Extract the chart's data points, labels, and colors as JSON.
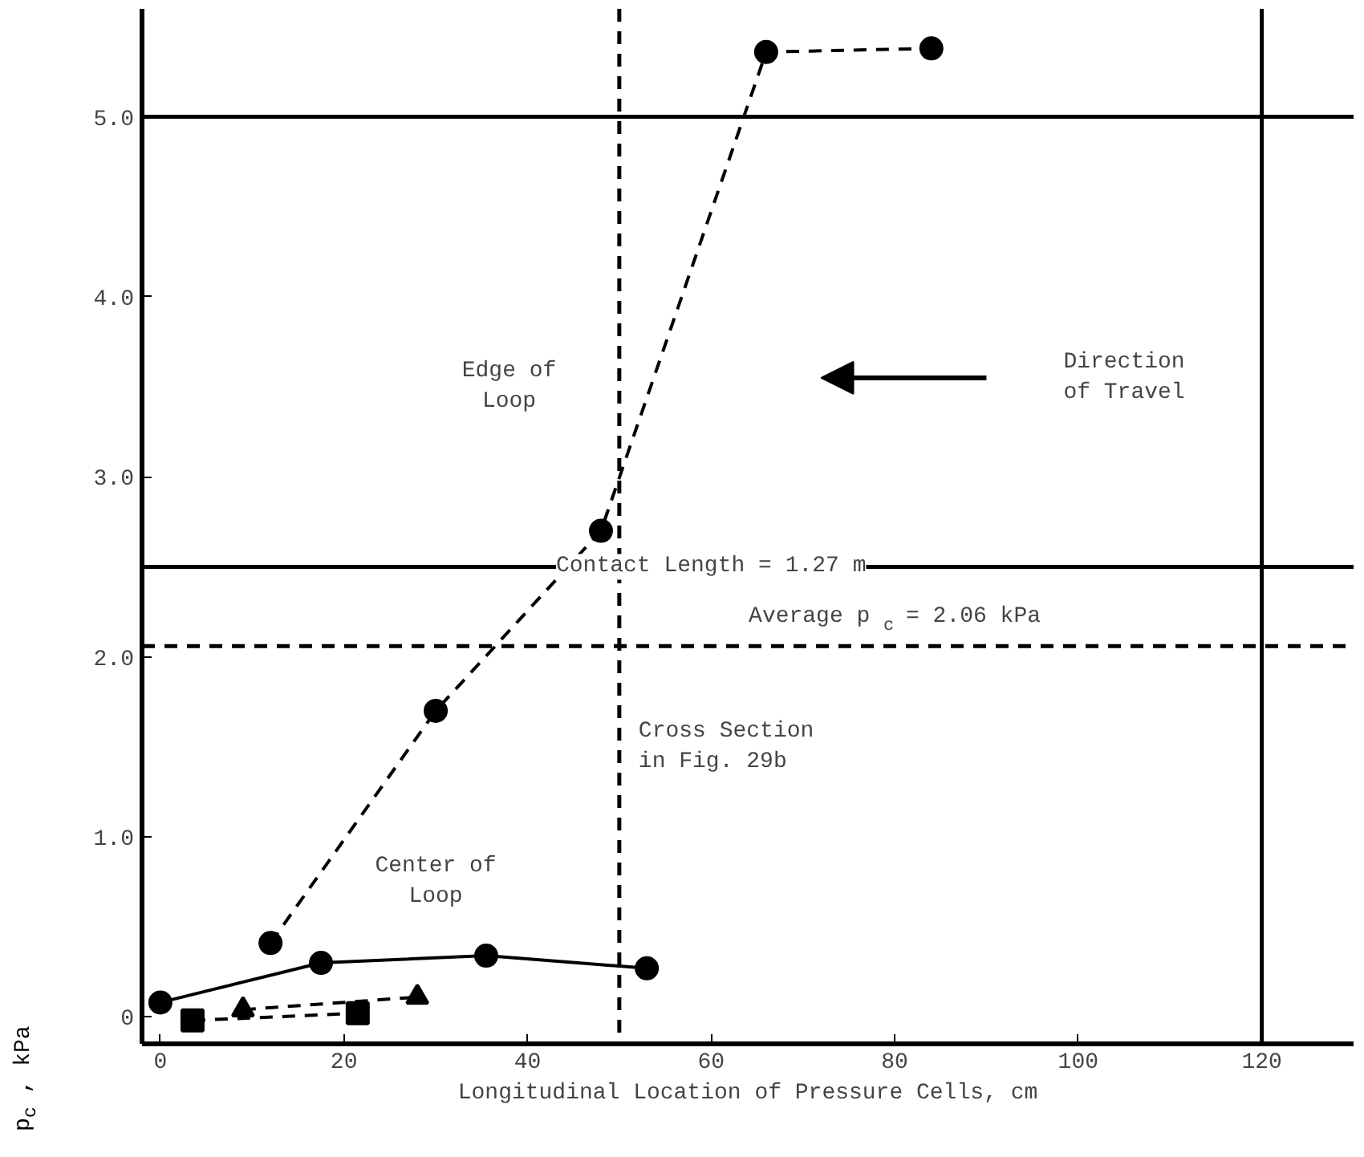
{
  "chart_data": {
    "type": "line",
    "xlabel": "Longitudinal Location of Pressure Cells, cm",
    "ylabel": "p$_{c}$ , kPa",
    "xlim": [
      -2,
      130
    ],
    "ylim": [
      -0.15,
      5.6
    ],
    "xticks": [
      0,
      20,
      40,
      60,
      80,
      100,
      120
    ],
    "yticks": [
      {
        "value": 0,
        "label": "0"
      },
      {
        "value": 1,
        "label": "1.0"
      },
      {
        "value": 2,
        "label": "2.0"
      },
      {
        "value": 3,
        "label": "3.0"
      },
      {
        "value": 4,
        "label": "4.0"
      },
      {
        "value": 5,
        "label": "5.0"
      }
    ],
    "grid": false,
    "series": [
      {
        "color": "#000000",
        "marker": "circle",
        "line_style": "dashed",
        "x": [
          12,
          30,
          48,
          66,
          84
        ],
        "values": [
          0.41,
          1.7,
          2.7,
          5.36,
          5.38
        ]
      },
      {
        "color": "#000000",
        "marker": "circle",
        "line_style": "solid",
        "x": [
          0,
          17.5,
          35.5,
          53
        ],
        "values": [
          0.08,
          0.3,
          0.34,
          0.27
        ]
      },
      {
        "color": "#000000",
        "marker": "triangle",
        "line_style": "dashed",
        "x": [
          9,
          28
        ],
        "values": [
          0.04,
          0.11
        ]
      },
      {
        "color": "#000000",
        "marker": "square",
        "line_style": "dashed",
        "x": [
          3.5,
          21.5
        ],
        "values": [
          -0.02,
          0.02
        ]
      }
    ],
    "ref_lines": [
      {
        "axis": "y",
        "value": 5.0,
        "label": null,
        "line_style": "solid"
      },
      {
        "axis": "x",
        "value": 120,
        "label": null,
        "line_style": "solid"
      },
      {
        "axis": "y",
        "value": 2.06,
        "label": "Average  p$_{c}$ = 2.06 kPa",
        "line_style": "dashed"
      },
      {
        "axis": "x",
        "value": 50,
        "label": "Cross Section\nin Fig. 29b",
        "line_style": "dashed"
      },
      {
        "axis": "y",
        "value": 2.5,
        "label": null,
        "line_style": "solid"
      }
    ],
    "annotations": [
      "Edge of\nLoop",
      "Center of\nLoop",
      "Direction\nof Travel",
      "Contact Length = 1.27 m"
    ]
  }
}
